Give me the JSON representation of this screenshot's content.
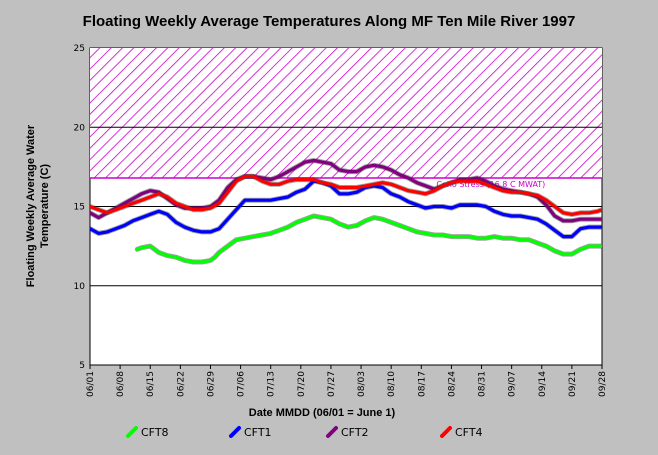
{
  "chart_data": {
    "type": "line",
    "title": "Floating Weekly Average Temperatures Along MF Ten Mile River 1997",
    "xlabel": "Date MMDD (06/01 = June 1)",
    "ylabel_lines": [
      "Floating Weekly Average Water",
      "Temperature (C)"
    ],
    "ylim": [
      5,
      25
    ],
    "yticks": [
      5,
      10,
      15,
      20,
      25
    ],
    "xlim": [
      0,
      119
    ],
    "xtick_positions": [
      0,
      7,
      14,
      21,
      28,
      35,
      42,
      49,
      56,
      63,
      70,
      77,
      84,
      91,
      98,
      105,
      112,
      119
    ],
    "xtick_labels": [
      "06/01",
      "06/08",
      "06/15",
      "06/22",
      "06/29",
      "07/06",
      "07/13",
      "07/20",
      "07/27",
      "08/03",
      "08/10",
      "08/17",
      "08/24",
      "08/31",
      "09/07",
      "09/14",
      "09/21",
      "09/28"
    ],
    "grid": "horizontal",
    "background": "#ffffff",
    "threshold": {
      "value": 16.8,
      "upper": 25,
      "label": "Coho Stress (16.8 C MWAT)",
      "color": "#cc00cc"
    },
    "legend_position": "bottom",
    "series": [
      {
        "name": "CFT8",
        "color": "#00ff00",
        "points": [
          [
            11,
            12.3
          ],
          [
            12,
            12.4
          ],
          [
            14,
            12.5
          ],
          [
            15,
            12.3
          ],
          [
            16,
            12.1
          ],
          [
            18,
            11.9
          ],
          [
            20,
            11.8
          ],
          [
            22,
            11.6
          ],
          [
            24,
            11.5
          ],
          [
            26,
            11.5
          ],
          [
            28,
            11.6
          ],
          [
            29,
            11.8
          ],
          [
            30,
            12.1
          ],
          [
            32,
            12.5
          ],
          [
            34,
            12.9
          ],
          [
            36,
            13.0
          ],
          [
            38,
            13.1
          ],
          [
            40,
            13.2
          ],
          [
            42,
            13.3
          ],
          [
            44,
            13.5
          ],
          [
            46,
            13.7
          ],
          [
            48,
            14.0
          ],
          [
            50,
            14.2
          ],
          [
            52,
            14.4
          ],
          [
            54,
            14.3
          ],
          [
            56,
            14.2
          ],
          [
            58,
            13.9
          ],
          [
            60,
            13.7
          ],
          [
            62,
            13.8
          ],
          [
            64,
            14.1
          ],
          [
            66,
            14.3
          ],
          [
            68,
            14.2
          ],
          [
            70,
            14.0
          ],
          [
            72,
            13.8
          ],
          [
            74,
            13.6
          ],
          [
            76,
            13.4
          ],
          [
            78,
            13.3
          ],
          [
            80,
            13.2
          ],
          [
            82,
            13.2
          ],
          [
            84,
            13.1
          ],
          [
            86,
            13.1
          ],
          [
            88,
            13.1
          ],
          [
            90,
            13.0
          ],
          [
            92,
            13.0
          ],
          [
            94,
            13.1
          ],
          [
            96,
            13.0
          ],
          [
            98,
            13.0
          ],
          [
            100,
            12.9
          ],
          [
            102,
            12.9
          ],
          [
            104,
            12.7
          ],
          [
            106,
            12.5
          ],
          [
            108,
            12.2
          ],
          [
            110,
            12.0
          ],
          [
            112,
            12.0
          ],
          [
            114,
            12.3
          ],
          [
            116,
            12.5
          ],
          [
            118,
            12.5
          ],
          [
            119,
            12.5
          ]
        ]
      },
      {
        "name": "CFT1",
        "color": "#0000ff",
        "points": [
          [
            0,
            13.6
          ],
          [
            2,
            13.3
          ],
          [
            4,
            13.4
          ],
          [
            6,
            13.6
          ],
          [
            8,
            13.8
          ],
          [
            10,
            14.1
          ],
          [
            12,
            14.3
          ],
          [
            14,
            14.5
          ],
          [
            16,
            14.7
          ],
          [
            18,
            14.5
          ],
          [
            20,
            14.0
          ],
          [
            22,
            13.7
          ],
          [
            24,
            13.5
          ],
          [
            26,
            13.4
          ],
          [
            28,
            13.4
          ],
          [
            30,
            13.6
          ],
          [
            32,
            14.2
          ],
          [
            34,
            14.8
          ],
          [
            36,
            15.4
          ],
          [
            38,
            15.4
          ],
          [
            40,
            15.4
          ],
          [
            42,
            15.4
          ],
          [
            44,
            15.5
          ],
          [
            46,
            15.6
          ],
          [
            48,
            15.9
          ],
          [
            50,
            16.1
          ],
          [
            52,
            16.6
          ],
          [
            54,
            16.5
          ],
          [
            56,
            16.3
          ],
          [
            58,
            15.8
          ],
          [
            60,
            15.8
          ],
          [
            62,
            15.9
          ],
          [
            64,
            16.2
          ],
          [
            66,
            16.3
          ],
          [
            68,
            16.2
          ],
          [
            70,
            15.8
          ],
          [
            72,
            15.6
          ],
          [
            74,
            15.3
          ],
          [
            76,
            15.1
          ],
          [
            78,
            14.9
          ],
          [
            80,
            15.0
          ],
          [
            82,
            15.0
          ],
          [
            84,
            14.9
          ],
          [
            86,
            15.1
          ],
          [
            88,
            15.1
          ],
          [
            90,
            15.1
          ],
          [
            92,
            15.0
          ],
          [
            94,
            14.7
          ],
          [
            96,
            14.5
          ],
          [
            98,
            14.4
          ],
          [
            100,
            14.4
          ],
          [
            102,
            14.3
          ],
          [
            104,
            14.2
          ],
          [
            106,
            13.9
          ],
          [
            108,
            13.5
          ],
          [
            110,
            13.1
          ],
          [
            112,
            13.1
          ],
          [
            114,
            13.6
          ],
          [
            116,
            13.7
          ],
          [
            118,
            13.7
          ],
          [
            119,
            13.7
          ]
        ]
      },
      {
        "name": "CFT2",
        "color": "#800080",
        "points": [
          [
            0,
            14.6
          ],
          [
            2,
            14.3
          ],
          [
            4,
            14.6
          ],
          [
            6,
            14.9
          ],
          [
            8,
            15.2
          ],
          [
            10,
            15.5
          ],
          [
            12,
            15.8
          ],
          [
            14,
            16.0
          ],
          [
            16,
            15.9
          ],
          [
            18,
            15.5
          ],
          [
            20,
            15.1
          ],
          [
            22,
            14.9
          ],
          [
            24,
            14.9
          ],
          [
            26,
            14.9
          ],
          [
            28,
            15.0
          ],
          [
            30,
            15.4
          ],
          [
            32,
            16.2
          ],
          [
            34,
            16.7
          ],
          [
            36,
            16.9
          ],
          [
            38,
            16.9
          ],
          [
            40,
            16.8
          ],
          [
            42,
            16.7
          ],
          [
            44,
            16.9
          ],
          [
            46,
            17.2
          ],
          [
            48,
            17.5
          ],
          [
            50,
            17.8
          ],
          [
            52,
            17.9
          ],
          [
            54,
            17.8
          ],
          [
            56,
            17.7
          ],
          [
            58,
            17.3
          ],
          [
            60,
            17.2
          ],
          [
            62,
            17.2
          ],
          [
            64,
            17.5
          ],
          [
            66,
            17.6
          ],
          [
            68,
            17.5
          ],
          [
            70,
            17.3
          ],
          [
            72,
            17.0
          ],
          [
            74,
            16.8
          ],
          [
            76,
            16.5
          ],
          [
            78,
            16.3
          ],
          [
            80,
            16.1
          ],
          [
            82,
            16.3
          ],
          [
            84,
            16.5
          ],
          [
            86,
            16.7
          ],
          [
            88,
            16.7
          ],
          [
            90,
            16.8
          ],
          [
            92,
            16.6
          ],
          [
            94,
            16.3
          ],
          [
            96,
            16.1
          ],
          [
            98,
            16.0
          ],
          [
            100,
            15.9
          ],
          [
            102,
            15.8
          ],
          [
            104,
            15.6
          ],
          [
            106,
            15.1
          ],
          [
            108,
            14.4
          ],
          [
            110,
            14.1
          ],
          [
            112,
            14.1
          ],
          [
            114,
            14.2
          ],
          [
            116,
            14.2
          ],
          [
            118,
            14.2
          ],
          [
            119,
            14.2
          ]
        ]
      },
      {
        "name": "CFT4",
        "color": "#ff0000",
        "points": [
          [
            0,
            15.0
          ],
          [
            2,
            14.8
          ],
          [
            4,
            14.6
          ],
          [
            6,
            14.8
          ],
          [
            8,
            15.0
          ],
          [
            10,
            15.2
          ],
          [
            12,
            15.4
          ],
          [
            14,
            15.6
          ],
          [
            16,
            15.8
          ],
          [
            18,
            15.6
          ],
          [
            20,
            15.2
          ],
          [
            22,
            15.0
          ],
          [
            24,
            14.8
          ],
          [
            26,
            14.8
          ],
          [
            28,
            14.9
          ],
          [
            30,
            15.2
          ],
          [
            32,
            15.9
          ],
          [
            34,
            16.6
          ],
          [
            36,
            16.9
          ],
          [
            38,
            16.9
          ],
          [
            40,
            16.6
          ],
          [
            42,
            16.4
          ],
          [
            44,
            16.4
          ],
          [
            46,
            16.6
          ],
          [
            48,
            16.7
          ],
          [
            50,
            16.7
          ],
          [
            52,
            16.7
          ],
          [
            54,
            16.5
          ],
          [
            56,
            16.4
          ],
          [
            58,
            16.2
          ],
          [
            60,
            16.2
          ],
          [
            62,
            16.2
          ],
          [
            64,
            16.3
          ],
          [
            66,
            16.4
          ],
          [
            68,
            16.5
          ],
          [
            70,
            16.4
          ],
          [
            72,
            16.2
          ],
          [
            74,
            16.0
          ],
          [
            76,
            15.9
          ],
          [
            78,
            15.8
          ],
          [
            80,
            16.0
          ],
          [
            82,
            16.3
          ],
          [
            84,
            16.5
          ],
          [
            86,
            16.6
          ],
          [
            88,
            16.6
          ],
          [
            90,
            16.6
          ],
          [
            92,
            16.4
          ],
          [
            94,
            16.2
          ],
          [
            96,
            16.0
          ],
          [
            98,
            15.9
          ],
          [
            100,
            15.9
          ],
          [
            102,
            15.8
          ],
          [
            104,
            15.7
          ],
          [
            106,
            15.4
          ],
          [
            108,
            15.0
          ],
          [
            110,
            14.6
          ],
          [
            112,
            14.5
          ],
          [
            114,
            14.6
          ],
          [
            116,
            14.6
          ],
          [
            118,
            14.7
          ],
          [
            119,
            14.8
          ]
        ]
      }
    ]
  }
}
